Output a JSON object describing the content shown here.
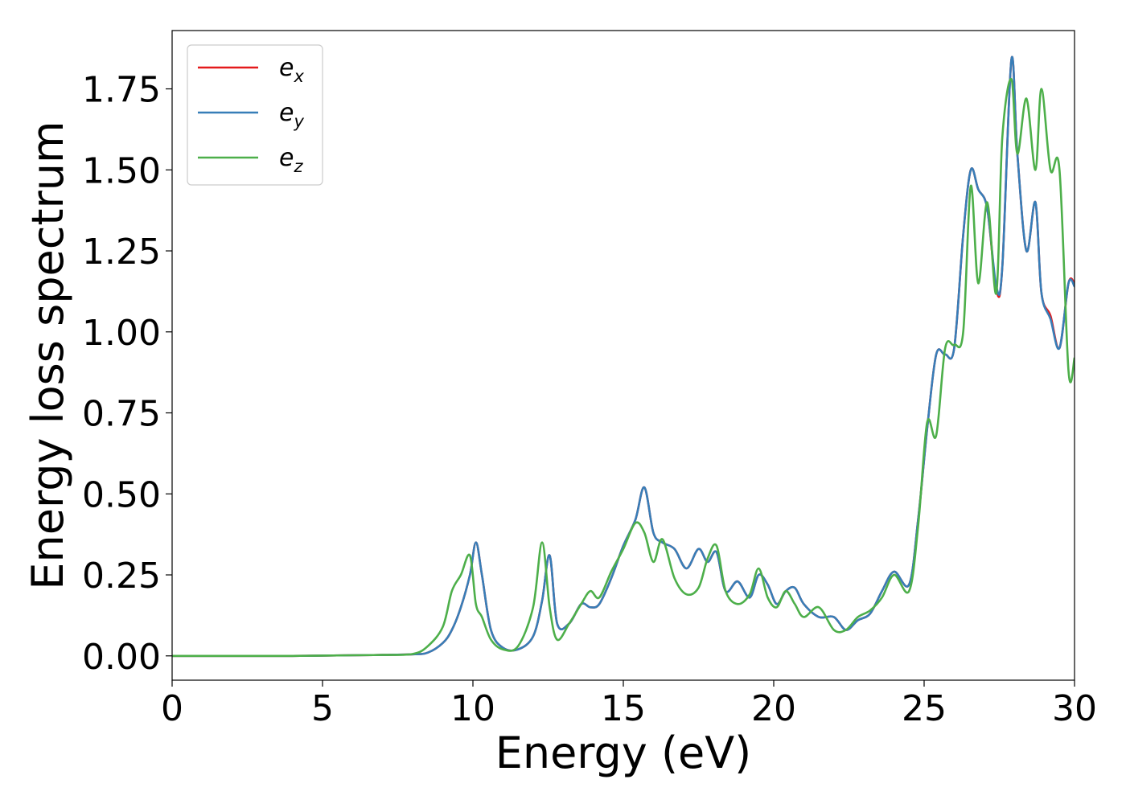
{
  "chart_data": {
    "type": "line",
    "xlabel": "Energy (eV)",
    "ylabel": "Energy loss spectrum",
    "xlim": [
      0,
      30
    ],
    "ylim": [
      -0.075,
      1.93
    ],
    "xticks": [
      0,
      5,
      10,
      15,
      20,
      25,
      30
    ],
    "xtick_labels": [
      "0",
      "5",
      "10",
      "15",
      "20",
      "25",
      "30"
    ],
    "yticks": [
      0.0,
      0.25,
      0.5,
      0.75,
      1.0,
      1.25,
      1.5,
      1.75
    ],
    "ytick_labels": [
      "0.00",
      "0.25",
      "0.50",
      "0.75",
      "1.00",
      "1.25",
      "1.50",
      "1.75"
    ],
    "grid": false,
    "legend_position": "top-left",
    "x": [
      0,
      2,
      4,
      6,
      7,
      8,
      8.5,
      9,
      9.3,
      9.6,
      9.9,
      10.1,
      10.3,
      10.6,
      11,
      11.5,
      12,
      12.3,
      12.55,
      12.8,
      13.2,
      13.6,
      13.9,
      14.2,
      14.6,
      15,
      15.4,
      15.7,
      16,
      16.3,
      16.7,
      17.1,
      17.5,
      17.8,
      18.1,
      18.4,
      18.8,
      19.2,
      19.5,
      19.8,
      20.1,
      20.4,
      20.7,
      21,
      21.5,
      22,
      22.4,
      22.8,
      23.2,
      23.6,
      24,
      24.5,
      24.8,
      25.1,
      25.4,
      25.7,
      26,
      26.3,
      26.55,
      26.8,
      27.1,
      27.4,
      27.6,
      27.9,
      28.1,
      28.4,
      28.7,
      28.9,
      29.2,
      29.5,
      29.8,
      30
    ],
    "series": [
      {
        "name": "e_x",
        "label_base": "e",
        "label_sub": "x",
        "color": "#e41a1c",
        "values": [
          0,
          0,
          0,
          0.002,
          0.003,
          0.005,
          0.01,
          0.04,
          0.08,
          0.15,
          0.25,
          0.35,
          0.25,
          0.08,
          0.025,
          0.02,
          0.06,
          0.17,
          0.31,
          0.1,
          0.1,
          0.16,
          0.15,
          0.16,
          0.24,
          0.34,
          0.42,
          0.52,
          0.38,
          0.35,
          0.33,
          0.27,
          0.33,
          0.29,
          0.32,
          0.2,
          0.23,
          0.18,
          0.25,
          0.22,
          0.16,
          0.2,
          0.21,
          0.16,
          0.12,
          0.12,
          0.08,
          0.11,
          0.13,
          0.2,
          0.26,
          0.22,
          0.42,
          0.7,
          0.93,
          0.93,
          0.95,
          1.3,
          1.5,
          1.44,
          1.38,
          1.13,
          1.2,
          1.84,
          1.55,
          1.25,
          1.4,
          1.12,
          1.05,
          0.95,
          1.15,
          1.15
        ]
      },
      {
        "name": "e_y",
        "label_base": "e",
        "label_sub": "y",
        "color": "#377eb8",
        "values": [
          0,
          0,
          0,
          0.002,
          0.003,
          0.005,
          0.01,
          0.04,
          0.08,
          0.15,
          0.25,
          0.35,
          0.25,
          0.08,
          0.025,
          0.02,
          0.06,
          0.17,
          0.31,
          0.1,
          0.1,
          0.16,
          0.15,
          0.16,
          0.24,
          0.34,
          0.42,
          0.52,
          0.38,
          0.35,
          0.33,
          0.27,
          0.33,
          0.29,
          0.32,
          0.2,
          0.23,
          0.18,
          0.25,
          0.22,
          0.16,
          0.2,
          0.21,
          0.16,
          0.12,
          0.12,
          0.08,
          0.11,
          0.13,
          0.2,
          0.26,
          0.22,
          0.42,
          0.7,
          0.93,
          0.93,
          0.95,
          1.3,
          1.5,
          1.44,
          1.38,
          1.14,
          1.2,
          1.84,
          1.55,
          1.25,
          1.4,
          1.12,
          1.04,
          0.95,
          1.15,
          1.14
        ]
      },
      {
        "name": "e_z",
        "label_base": "e",
        "label_sub": "z",
        "color": "#4daf4a",
        "values": [
          0,
          0,
          0,
          0.002,
          0.003,
          0.006,
          0.03,
          0.09,
          0.2,
          0.25,
          0.31,
          0.16,
          0.12,
          0.05,
          0.02,
          0.03,
          0.15,
          0.35,
          0.15,
          0.05,
          0.1,
          0.16,
          0.2,
          0.18,
          0.26,
          0.33,
          0.41,
          0.38,
          0.29,
          0.36,
          0.24,
          0.19,
          0.21,
          0.3,
          0.34,
          0.2,
          0.16,
          0.19,
          0.27,
          0.18,
          0.15,
          0.2,
          0.16,
          0.12,
          0.15,
          0.08,
          0.08,
          0.12,
          0.14,
          0.18,
          0.25,
          0.2,
          0.4,
          0.72,
          0.68,
          0.95,
          0.96,
          1.0,
          1.45,
          1.15,
          1.4,
          1.12,
          1.6,
          1.78,
          1.55,
          1.72,
          1.5,
          1.75,
          1.5,
          1.5,
          0.88,
          0.92
        ]
      }
    ]
  }
}
